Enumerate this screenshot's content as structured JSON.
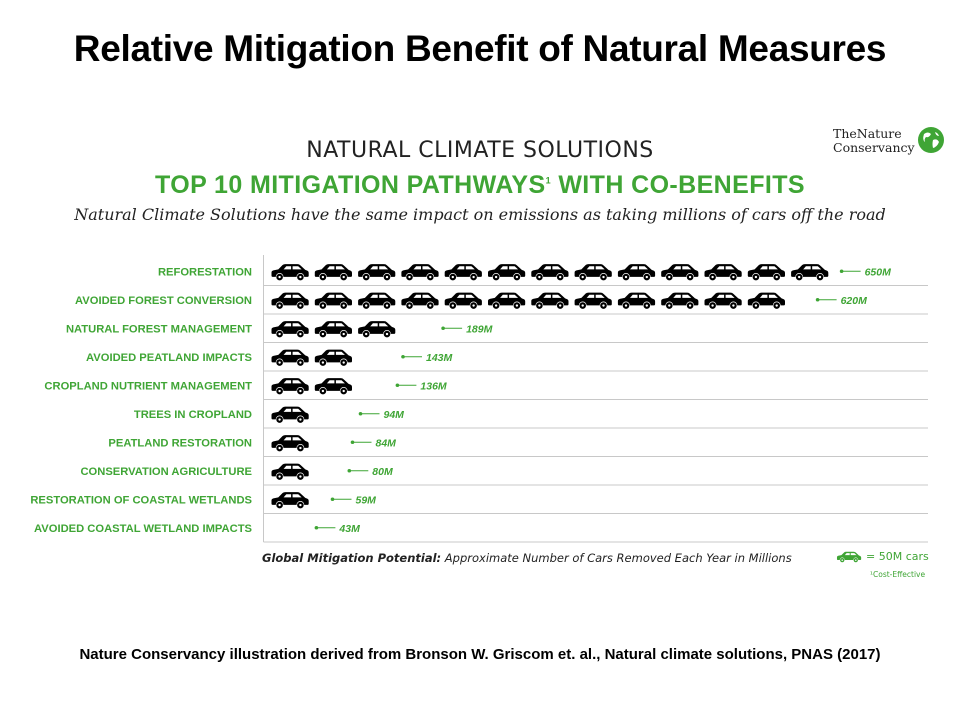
{
  "slide": {
    "title": "Relative Mitigation Benefit of Natural Measures",
    "source": "Nature Conservancy illustration derived from Bronson W. Griscom et. al., Natural climate solutions, PNAS (2017)"
  },
  "logo": {
    "line1": "TheNature",
    "line2": "Conservancy",
    "globe_icon": "globe-icon",
    "globe_color": "#3fa535"
  },
  "chart_data": {
    "type": "bar",
    "title": "NATURAL CLIMATE SOLUTIONS",
    "subtitle": "TOP 10 MITIGATION PATHWAYS",
    "subtitle_footnote": "1",
    "subtitle_suffix": " WITH CO-BENEFITS",
    "description": "Natural Climate Solutions have the same impact on emissions as taking millions of cars off the road",
    "orientation": "horizontal",
    "unit_icon": "car-icon",
    "unit_value": 50,
    "categories": [
      "REFORESTATION",
      "AVOIDED FOREST CONVERSION",
      "NATURAL FOREST MANAGEMENT",
      "AVOIDED PEATLAND IMPACTS",
      "CROPLAND NUTRIENT MANAGEMENT",
      "TREES IN CROPLAND",
      "PEATLAND RESTORATION",
      "CONSERVATION AGRICULTURE",
      "RESTORATION OF COASTAL WETLANDS",
      "AVOIDED COASTAL WETLAND IMPACTS"
    ],
    "values": [
      650,
      620,
      189,
      143,
      136,
      94,
      84,
      80,
      59,
      43
    ],
    "value_labels": [
      "650M",
      "620M",
      "189M",
      "143M",
      "136M",
      "94M",
      "84M",
      "80M",
      "59M",
      "43M"
    ],
    "xlabel_bold": "Global Mitigation Potential:",
    "xlabel": " Approximate Number of Cars Removed Each Year in Millions",
    "legend": {
      "label": "= 50M cars",
      "footnote": "¹Cost-Effective"
    },
    "grid": true,
    "colors": {
      "icon": "#000000",
      "accent": "#3fa535",
      "grid": "#c8c8c8",
      "label": "#3fa535"
    }
  }
}
